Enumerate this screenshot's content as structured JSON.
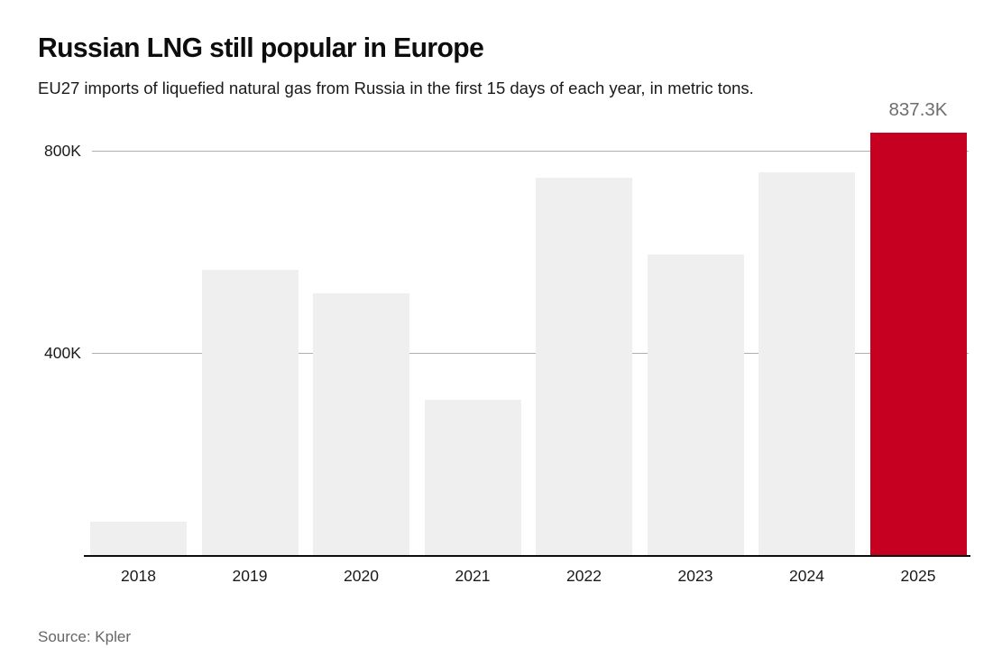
{
  "chart_data": {
    "type": "bar",
    "title": "Russian LNG still popular in Europe",
    "subtitle": "EU27 imports of liquefied natural gas from Russia in the first 15 days of each year, in metric tons.",
    "categories": [
      "2018",
      "2019",
      "2020",
      "2021",
      "2022",
      "2023",
      "2024",
      "2025"
    ],
    "values": [
      69000,
      567000,
      520000,
      310000,
      748000,
      597000,
      759000,
      837300
    ],
    "value_labels": [
      null,
      null,
      null,
      null,
      null,
      null,
      null,
      "837.3K"
    ],
    "highlight_index": 7,
    "highlight_category": "2025",
    "yticks": [
      {
        "value": 400000,
        "label": "400K"
      },
      {
        "value": 800000,
        "label": "800K"
      }
    ],
    "ylim": [
      0,
      890000
    ],
    "xlabel": "",
    "ylabel": "",
    "grid": "horizontal",
    "legend": "none",
    "colors": {
      "bar": "#efefef",
      "highlight": "#c50021",
      "gridline": "#aeaeae",
      "axis": "#0d0d0d",
      "value_label": "#6e6e6e"
    }
  },
  "footer": {
    "source": "Source: Kpler"
  }
}
